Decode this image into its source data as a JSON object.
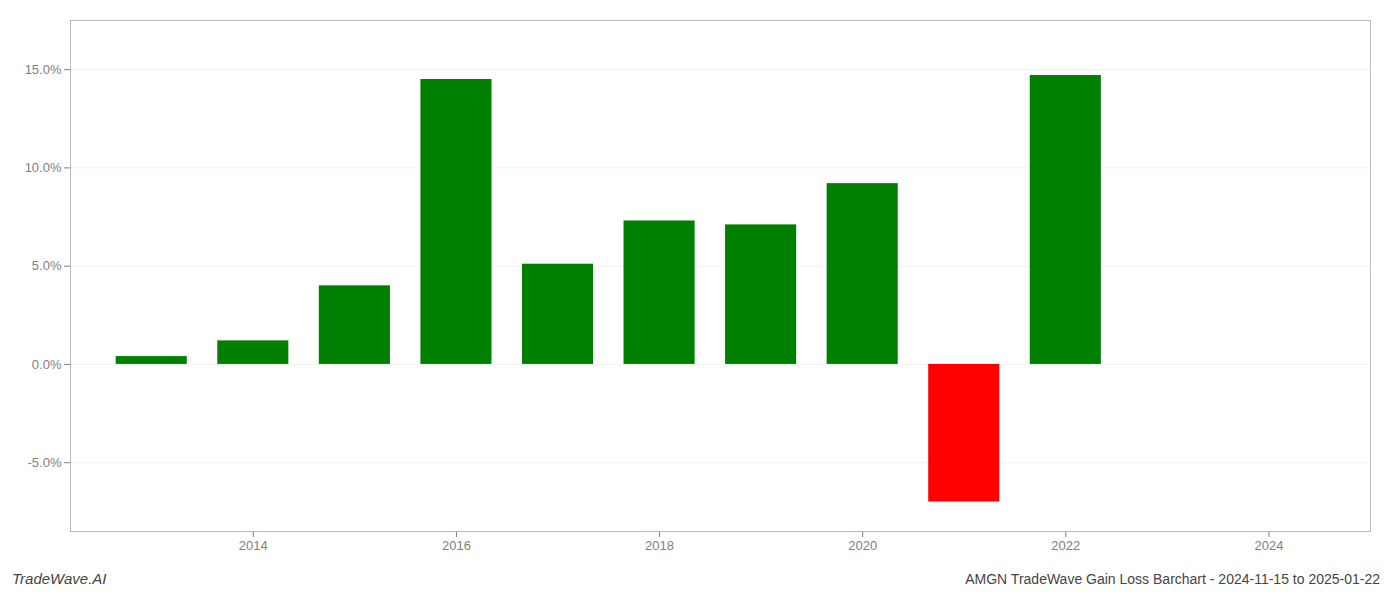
{
  "chart_data": {
    "type": "bar",
    "title": "AMGN TradeWave Gain Loss Barchart - 2024-11-15 to 2025-01-22",
    "annotations": [
      "TradeWave.AI"
    ],
    "x": [
      2013,
      2014,
      2015,
      2016,
      2017,
      2018,
      2019,
      2020,
      2021,
      2022
    ],
    "values": [
      0.004,
      0.012,
      0.04,
      0.145,
      0.051,
      0.073,
      0.071,
      0.092,
      -0.07,
      0.147
    ],
    "colors": [
      "#008000",
      "#008000",
      "#008000",
      "#008000",
      "#008000",
      "#008000",
      "#008000",
      "#008000",
      "#ff0000",
      "#008000"
    ],
    "xlim": [
      2012.2,
      2025.0
    ],
    "xticks": [
      2014,
      2016,
      2018,
      2020,
      2022,
      2024
    ],
    "ylim": [
      -0.085,
      0.175
    ],
    "yticks": [
      {
        "value": -0.05,
        "label": "-5.0%"
      },
      {
        "value": 0.0,
        "label": "0.0%"
      },
      {
        "value": 0.05,
        "label": "5.0%"
      },
      {
        "value": 0.1,
        "label": "10.0%"
      },
      {
        "value": 0.15,
        "label": "15.0%"
      }
    ],
    "grid": true
  }
}
